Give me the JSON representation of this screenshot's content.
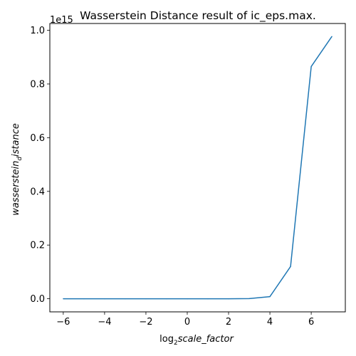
{
  "chart_data": {
    "type": "line",
    "title": "Wasserstein Distance result of ic_eps.max.",
    "xlabel": {
      "prefix": "log",
      "sub": "2",
      "main": "scale_factor"
    },
    "ylabel": {
      "main": "wasserstein",
      "sub": "d",
      "suffix": "istance"
    },
    "y_offset_label": "1e15",
    "xlim": [
      -6.65,
      7.65
    ],
    "ylim": [
      -0.0488,
      1.0253
    ],
    "y_scale": 1000000000000000.0,
    "x_ticks": [
      -6,
      -4,
      -2,
      0,
      2,
      4,
      6
    ],
    "x_tick_labels": [
      "−6",
      "−4",
      "−2",
      "0",
      "2",
      "4",
      "6"
    ],
    "y_ticks": [
      0.0,
      0.2,
      0.4,
      0.6,
      0.8,
      1.0
    ],
    "y_tick_labels": [
      "0.0",
      "0.2",
      "0.4",
      "0.6",
      "0.8",
      "1.0"
    ],
    "grid": false,
    "series": [
      {
        "color": "#1f77b4",
        "x": [
          -6,
          -5,
          -4,
          -3,
          -2,
          -1,
          0,
          1,
          2,
          3,
          4,
          5,
          6,
          7
        ],
        "y": [
          0.0,
          0.0,
          0.0,
          0.0,
          0.0,
          0.0,
          0.0,
          0.0,
          0.0,
          0.0005,
          0.008,
          0.12,
          0.865,
          0.977
        ]
      }
    ]
  }
}
